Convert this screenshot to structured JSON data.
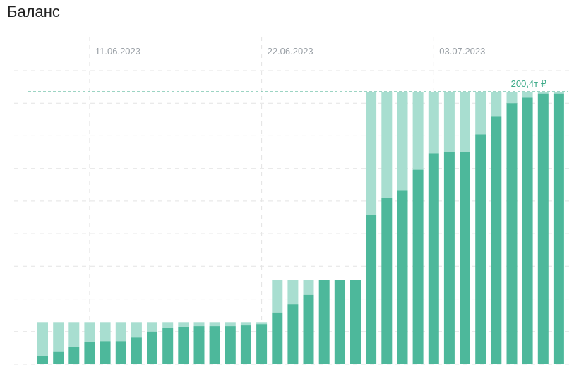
{
  "widget": {
    "title": "Баланс"
  },
  "colors": {
    "bar_main": "#4db89b",
    "bar_light": "#a8ded0",
    "grid": "#e4e4e4",
    "max_line": "#3aa987",
    "tick_text": "#9aa0a6"
  },
  "chart_data": {
    "type": "bar",
    "stacked": true,
    "unit": "₽",
    "x_tick_labels": [
      "11.06.2023",
      "22.06.2023",
      "03.07.2023"
    ],
    "x_tick_indices": [
      3,
      14,
      25
    ],
    "max_line": {
      "value": 200400,
      "label": "200,4т ₽"
    },
    "ylim": [
      0,
      200400
    ],
    "grid": true,
    "series": [
      {
        "values": [
          6000,
          9500,
          12500,
          16500,
          17000,
          17000,
          19500,
          24000,
          26500,
          27500,
          28000,
          28000,
          28000,
          28500,
          29500,
          38000,
          44000,
          51000,
          62000,
          62000,
          62000,
          110000,
          122000,
          128000,
          143000,
          155000,
          156000,
          156000,
          169000,
          182000,
          192000,
          196000,
          199000,
          199000
        ]
      },
      {
        "values": [
          25000,
          21500,
          18500,
          14500,
          14000,
          14000,
          11500,
          7000,
          4500,
          3500,
          3000,
          3000,
          3000,
          2500,
          1500,
          24000,
          18000,
          11000,
          0,
          0,
          0,
          90400,
          78400,
          72400,
          57400,
          45400,
          44400,
          44400,
          31400,
          18400,
          8400,
          4400,
          1400,
          1400
        ]
      }
    ]
  }
}
